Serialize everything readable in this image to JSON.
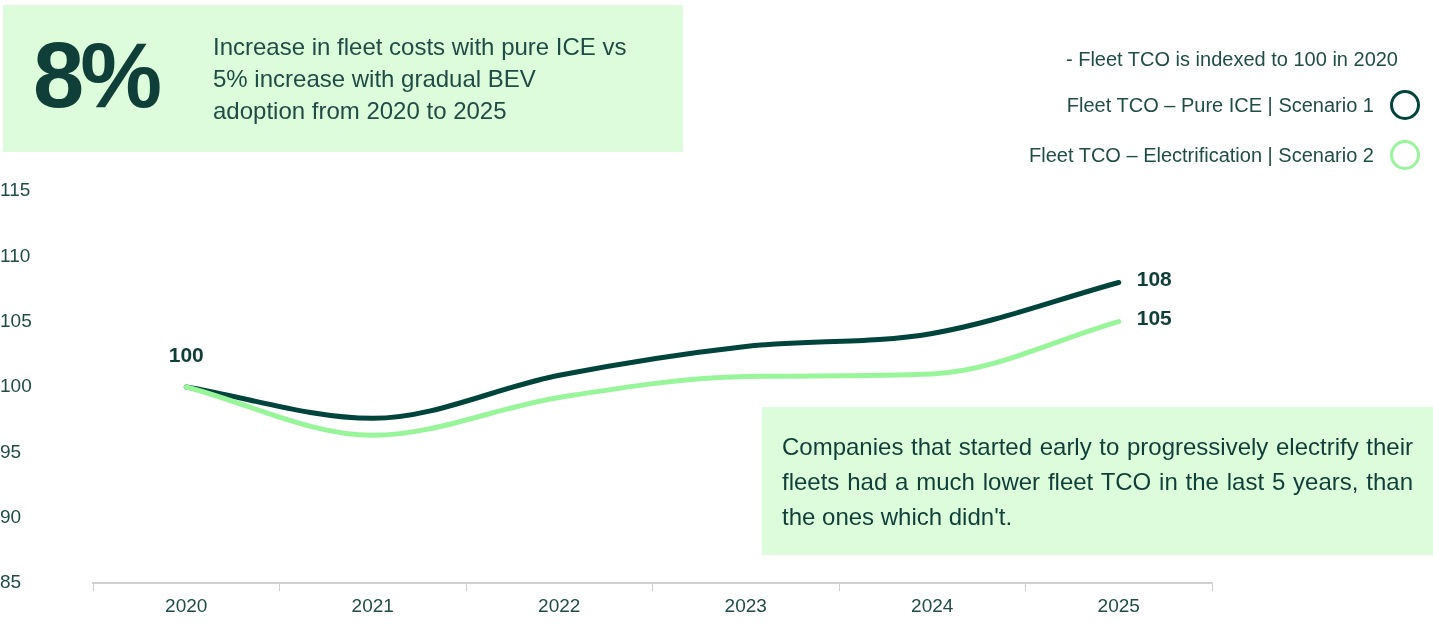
{
  "chart_data": {
    "type": "line",
    "title": "8%",
    "subtitle": "Increase in fleet costs with pure ICE vs 5% increase with gradual BEV adoption from 2020 to 2025",
    "annotations": [
      "- Fleet TCO is indexed to 100 in 2020",
      "Companies that started early to progressively electrify their fleets had a much lower fleet TCO in the last 5 years, than the ones which didn't."
    ],
    "categories": [
      "2020",
      "2021",
      "2022",
      "2023",
      "2024",
      "2025"
    ],
    "series": [
      {
        "name": "Fleet TCO – Pure ICE | Scenario 1",
        "color": "#00443b",
        "values": [
          100,
          97.6,
          100.9,
          103.1,
          104.1,
          108
        ],
        "value_labels": [
          "100",
          null,
          null,
          null,
          null,
          "108"
        ]
      },
      {
        "name": "Fleet TCO – Electrification | Scenario 2",
        "color": "#98f59a",
        "values": [
          100,
          96.3,
          99.2,
          100.8,
          101.0,
          105
        ],
        "value_labels": [
          null,
          null,
          null,
          null,
          null,
          "105"
        ]
      }
    ],
    "ylim": [
      85,
      115
    ],
    "yticks": [
      85,
      90,
      95,
      100,
      105,
      110,
      115
    ],
    "legend": "top right"
  }
}
